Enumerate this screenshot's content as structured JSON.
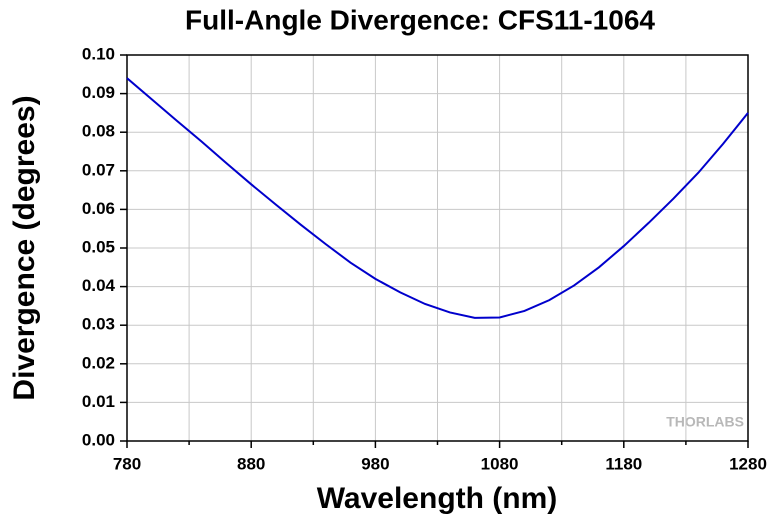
{
  "chart_data": {
    "type": "line",
    "title": "Full-Angle Divergence: CFS11-1064",
    "x_label": "Wavelength (nm)",
    "y_label": "Divergence (degrees)",
    "watermark": "THORLABS",
    "x": [
      780,
      800,
      820,
      840,
      860,
      880,
      900,
      920,
      940,
      960,
      980,
      1000,
      1020,
      1040,
      1060,
      1080,
      1100,
      1120,
      1140,
      1160,
      1180,
      1200,
      1220,
      1240,
      1260,
      1280
    ],
    "series": [
      {
        "name": "Divergence",
        "color": "#0000cc",
        "values": [
          0.094,
          0.0885,
          0.083,
          0.0776,
          0.072,
          0.0665,
          0.0612,
          0.056,
          0.051,
          0.0462,
          0.042,
          0.0385,
          0.0355,
          0.0333,
          0.0319,
          0.032,
          0.0337,
          0.0365,
          0.0403,
          0.045,
          0.0505,
          0.0565,
          0.0628,
          0.0695,
          0.077,
          0.085
        ]
      }
    ],
    "xlim": [
      780,
      1280
    ],
    "xticks": [
      780,
      880,
      980,
      1080,
      1180,
      1280
    ],
    "xminor": [
      830,
      930,
      1030,
      1130,
      1230
    ],
    "ylim": [
      0,
      0.1
    ],
    "yticks": [
      {
        "value": 0,
        "label": "0.00"
      },
      {
        "value": 0.01,
        "label": "0.01"
      },
      {
        "value": 0.02,
        "label": "0.02"
      },
      {
        "value": 0.03,
        "label": "0.03"
      },
      {
        "value": 0.04,
        "label": "0.04"
      },
      {
        "value": 0.05,
        "label": "0.05"
      },
      {
        "value": 0.06,
        "label": "0.06"
      },
      {
        "value": 0.07,
        "label": "0.07"
      },
      {
        "value": 0.08,
        "label": "0.08"
      },
      {
        "value": 0.09,
        "label": "0.09"
      },
      {
        "value": 0.1,
        "label": "0.10"
      }
    ],
    "grid": true
  }
}
